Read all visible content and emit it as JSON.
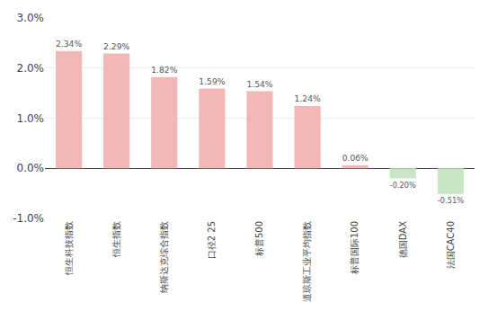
{
  "chart_data": {
    "type": "bar",
    "categories": [
      "恒生科技指数",
      "恒生指数",
      "纳斯达克综合指数",
      "口径2 25",
      "标普500",
      "道琼斯工业平均指数",
      "标普国际100",
      "德国DAX",
      "法国CAC40"
    ],
    "values": [
      2.34,
      2.29,
      1.82,
      1.59,
      1.54,
      1.24,
      0.06,
      -0.2,
      -0.51
    ],
    "value_labels": [
      "2.34%",
      "2.29%",
      "1.82%",
      "1.59%",
      "1.54%",
      "1.24%",
      "0.06%",
      "-0.20%",
      "-0.51%"
    ],
    "data_labels": true,
    "colors": [
      "#f2b8b8",
      "#f2b8b8",
      "#f2b8b8",
      "#f2b8b8",
      "#f2b8b8",
      "#f2b8b8",
      "#f2b8b8",
      "#c8e6c3",
      "#c8e6c3"
    ],
    "ylim": [
      -1.0,
      3.0
    ],
    "yticks": [
      {
        "value": -1.0,
        "label": "-1.0%"
      },
      {
        "value": 0.0,
        "label": "0.0%"
      },
      {
        "value": 1.0,
        "label": "1.0%"
      },
      {
        "value": 2.0,
        "label": "2.0%"
      },
      {
        "value": 3.0,
        "label": "3.0%"
      }
    ],
    "grid": true
  }
}
